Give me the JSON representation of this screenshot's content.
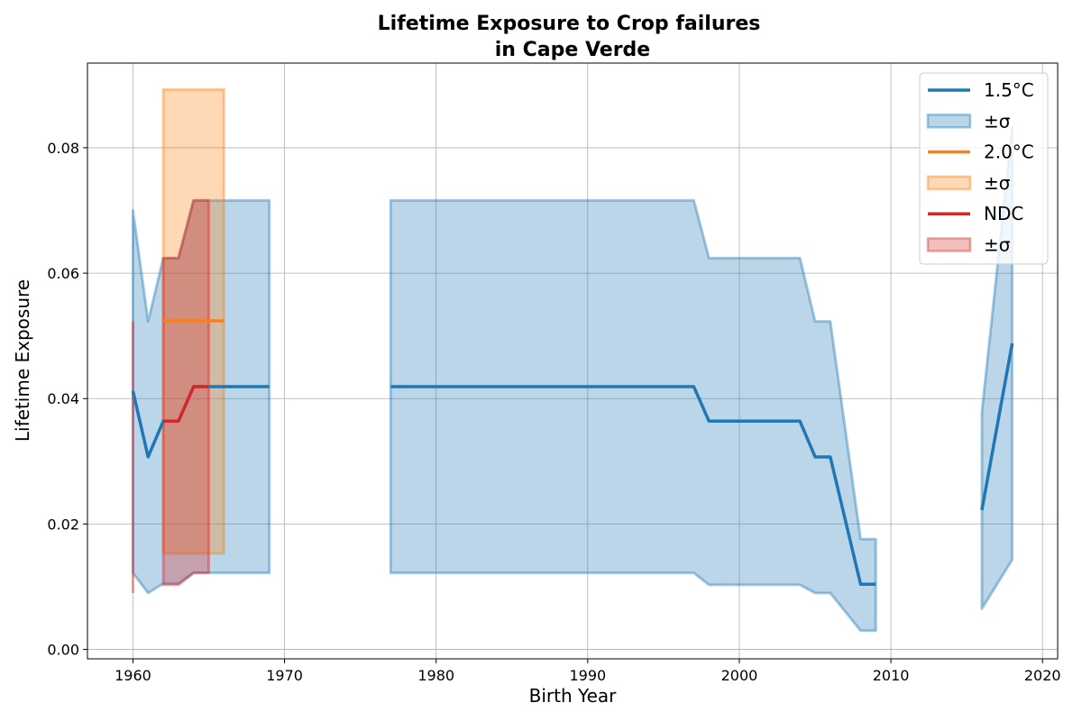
{
  "chart_data": {
    "type": "line",
    "title": "Lifetime Exposure to Crop failures",
    "subtitle": "in Cape Verde",
    "xlabel": "Birth Year",
    "ylabel": "Lifetime Exposure",
    "xlim": [
      1957,
      2021
    ],
    "ylim": [
      -0.0015,
      0.0935
    ],
    "xticks": [
      1960,
      1970,
      1980,
      1990,
      2000,
      2010,
      2020
    ],
    "xtick_labels": [
      "1960",
      "1970",
      "1980",
      "1990",
      "2000",
      "2010",
      "2020"
    ],
    "yticks": [
      0.0,
      0.02,
      0.04,
      0.06,
      0.08
    ],
    "ytick_labels": [
      "0.00",
      "0.02",
      "0.04",
      "0.06",
      "0.08"
    ],
    "grid": true,
    "legend_position": "top-right",
    "series": [
      {
        "name": "1.5°C",
        "band_label": "±σ",
        "color": "#1f77b4",
        "segments": [
          {
            "x": [
              1960,
              1961,
              1962,
              1963,
              1964,
              1965,
              1966,
              1967,
              1968,
              1969
            ],
            "y": [
              0.0412,
              0.0307,
              0.0364,
              0.0364,
              0.0419,
              0.0419,
              0.0419,
              0.0419,
              0.0419,
              0.0419
            ],
            "low": [
              0.0122,
              0.009,
              0.0105,
              0.0105,
              0.0122,
              0.0122,
              0.0122,
              0.0122,
              0.0122,
              0.0122
            ],
            "high": [
              0.07,
              0.0523,
              0.0624,
              0.0624,
              0.0716,
              0.0716,
              0.0716,
              0.0716,
              0.0716,
              0.0716
            ]
          },
          {
            "x": [
              1977,
              1997,
              1998,
              2004,
              2005,
              2006,
              2008,
              2009
            ],
            "y": [
              0.0419,
              0.0419,
              0.0364,
              0.0364,
              0.0307,
              0.0307,
              0.0104,
              0.0104
            ],
            "low": [
              0.0122,
              0.0122,
              0.0103,
              0.0103,
              0.009,
              0.009,
              0.003,
              0.003
            ],
            "high": [
              0.0716,
              0.0716,
              0.0624,
              0.0624,
              0.0523,
              0.0523,
              0.0176,
              0.0176
            ]
          },
          {
            "x": [
              2016,
              2018
            ],
            "y": [
              0.0222,
              0.0488
            ],
            "low": [
              0.0065,
              0.0143
            ],
            "high": [
              0.0378,
              0.0832
            ]
          }
        ]
      },
      {
        "name": "2.0°C",
        "band_label": "±σ",
        "color": "#ff7f0e",
        "segments": [
          {
            "x": [
              1962,
              1966
            ],
            "y": [
              0.0524,
              0.0524
            ],
            "low": [
              0.0153,
              0.0153
            ],
            "high": [
              0.0893,
              0.0893
            ]
          }
        ]
      },
      {
        "name": "NDC",
        "band_label": "±σ",
        "color": "#d62728",
        "segments": [
          {
            "x": [
              1960
            ],
            "y": [
              0.0307
            ],
            "low": [
              0.009
            ],
            "high": [
              0.0523
            ]
          },
          {
            "x": [
              1962,
              1963,
              1964,
              1965
            ],
            "y": [
              0.0364,
              0.0364,
              0.0419,
              0.0419
            ],
            "low": [
              0.0103,
              0.0103,
              0.0122,
              0.0122
            ],
            "high": [
              0.0624,
              0.0624,
              0.0716,
              0.0716
            ]
          }
        ]
      }
    ]
  }
}
